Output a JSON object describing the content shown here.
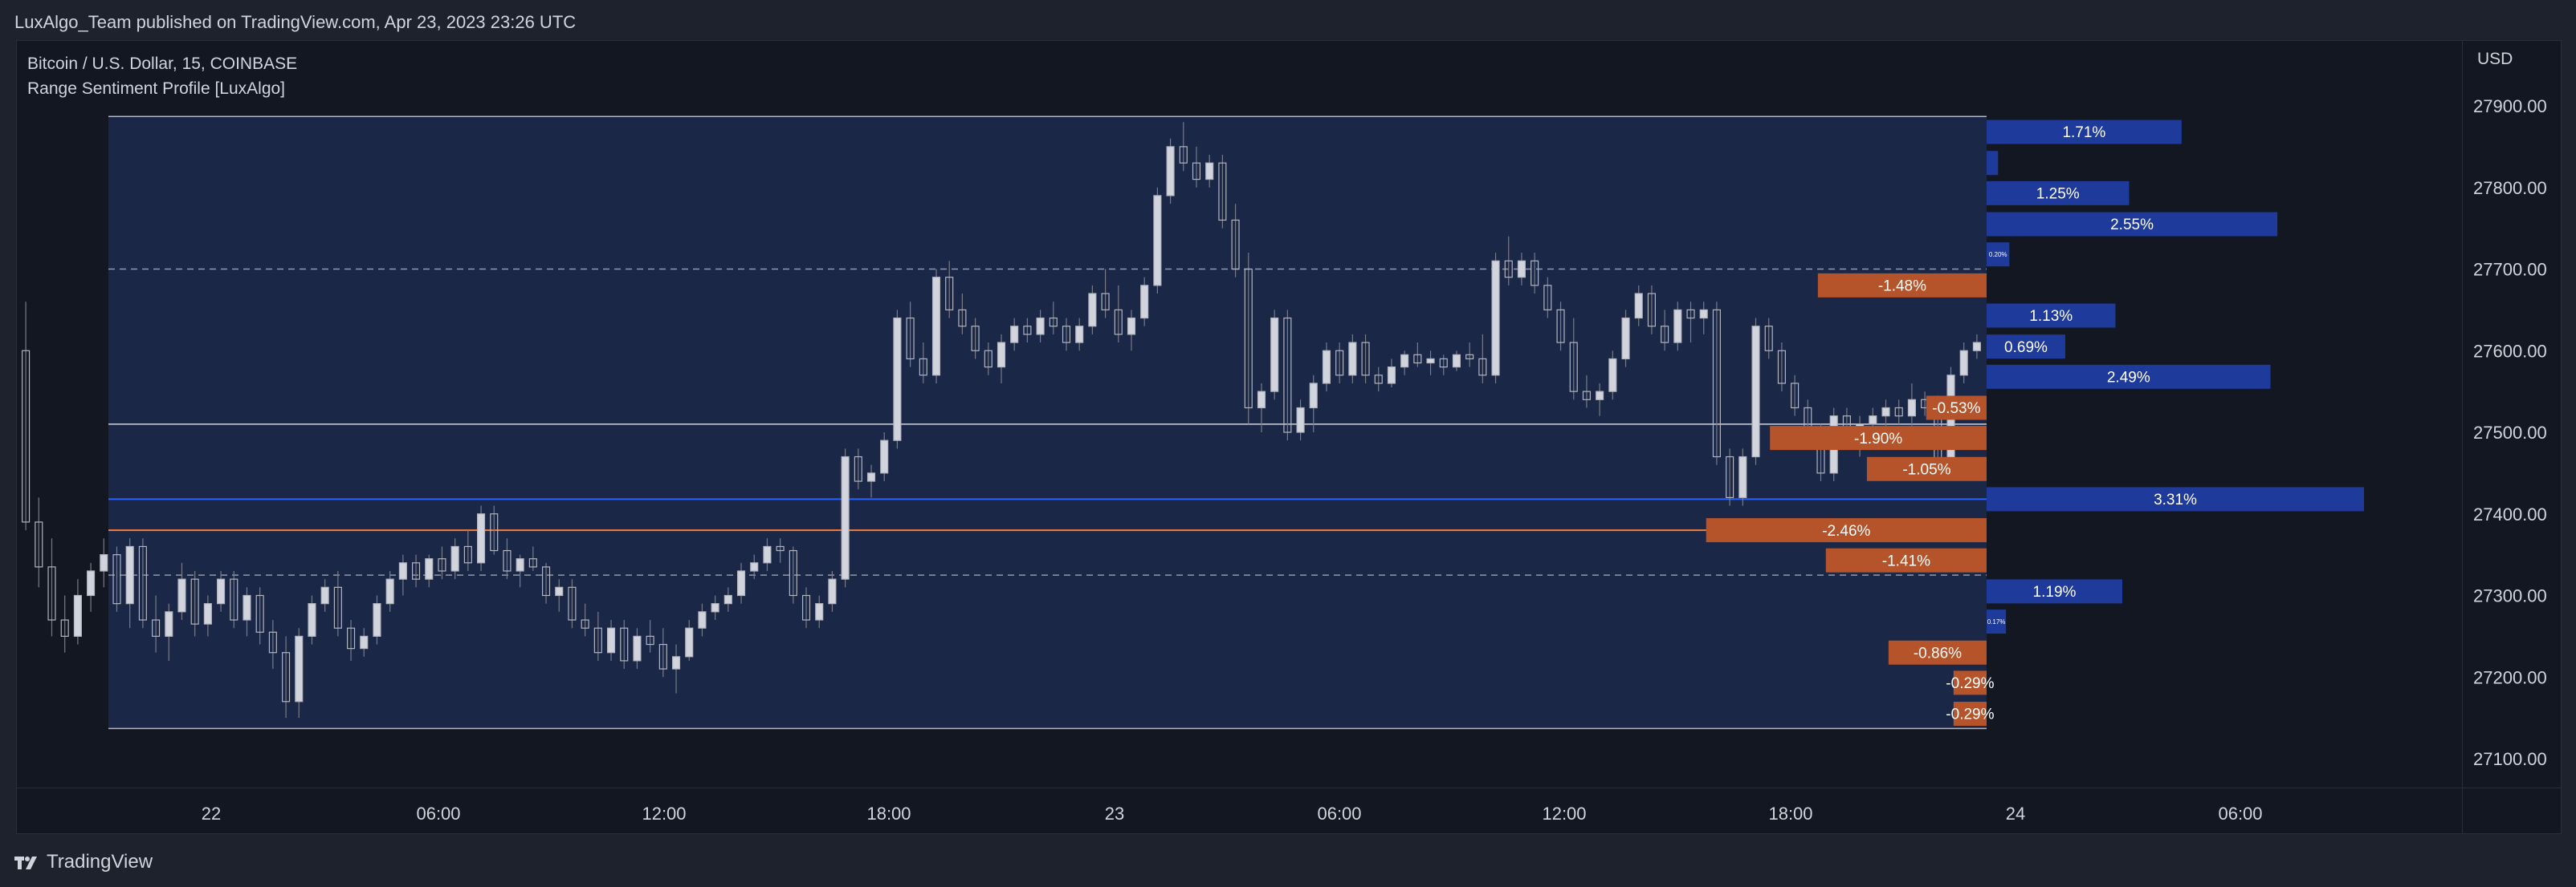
{
  "header": {
    "title": "LuxAlgo_Team published on TradingView.com, Apr 23, 2023 23:26 UTC"
  },
  "legend": {
    "symbol": "Bitcoin / U.S. Dollar, 15, COINBASE",
    "indicator": "Range Sentiment Profile [LuxAlgo]"
  },
  "axis": {
    "currency": "USD"
  },
  "footer": {
    "brand": "TradingView"
  },
  "colors": {
    "background": "#131722",
    "range_fill": "#1a2747",
    "candle": "#b2b5be",
    "bull_bar": "#1e3a9a",
    "bear_bar": "#b5532a",
    "blue_line": "#2962ff",
    "orange_line": "#f57c3a"
  },
  "chart_data": {
    "type": "candlestick-with-profile",
    "y_ticks": [
      27900,
      27800,
      27700,
      27600,
      27500,
      27400,
      27300,
      27200,
      27100
    ],
    "y_tick_labels": [
      "27900.00",
      "27800.00",
      "27700.00",
      "27600.00",
      "27500.00",
      "27400.00",
      "27300.00",
      "27200.00",
      "27100.00"
    ],
    "ylim": [
      27060,
      27945
    ],
    "x_ticks": [
      "22",
      "06:00",
      "12:00",
      "18:00",
      "23",
      "06:00",
      "12:00",
      "18:00",
      "24",
      "06:00"
    ],
    "range": {
      "top": 27887,
      "bottom": 27137
    },
    "levels": {
      "dashed_upper": 27700,
      "dashed_lower": 27325,
      "gray_line": 27510,
      "blue_line": 27418,
      "orange_line": 27380
    },
    "profile_bars": [
      {
        "label": "1.71%",
        "sentiment": 1.71,
        "price": 27868
      },
      {
        "label": "",
        "sentiment": 0.1,
        "price": 27830
      },
      {
        "label": "1.25%",
        "sentiment": 1.25,
        "price": 27793
      },
      {
        "label": "2.55%",
        "sentiment": 2.55,
        "price": 27755
      },
      {
        "label": "0.20%",
        "sentiment": 0.2,
        "price": 27718
      },
      {
        "label": "-1.48%",
        "sentiment": -1.48,
        "price": 27680
      },
      {
        "label": "1.13%",
        "sentiment": 1.13,
        "price": 27643
      },
      {
        "label": "0.69%",
        "sentiment": 0.69,
        "price": 27605
      },
      {
        "label": "2.49%",
        "sentiment": 2.49,
        "price": 27568
      },
      {
        "label": "-0.53%",
        "sentiment": -0.53,
        "price": 27530
      },
      {
        "label": "-1.90%",
        "sentiment": -1.9,
        "price": 27493
      },
      {
        "label": "-1.05%",
        "sentiment": -1.05,
        "price": 27455
      },
      {
        "label": "3.31%",
        "sentiment": 3.31,
        "price": 27418
      },
      {
        "label": "-2.46%",
        "sentiment": -2.46,
        "price": 27380
      },
      {
        "label": "-1.41%",
        "sentiment": -1.41,
        "price": 27343
      },
      {
        "label": "1.19%",
        "sentiment": 1.19,
        "price": 27305
      },
      {
        "label": "0.17%",
        "sentiment": 0.17,
        "price": 27268
      },
      {
        "label": "-0.86%",
        "sentiment": -0.86,
        "price": 27230
      },
      {
        "label": "-0.29%",
        "sentiment": -0.29,
        "price": 27193
      },
      {
        "label": "-0.29%",
        "sentiment": -0.29,
        "price": 27155
      }
    ],
    "candles": [
      [
        27600,
        27660,
        27380,
        27390
      ],
      [
        27390,
        27420,
        27310,
        27335
      ],
      [
        27335,
        27370,
        27250,
        27270
      ],
      [
        27270,
        27300,
        27230,
        27250
      ],
      [
        27250,
        27320,
        27240,
        27300
      ],
      [
        27300,
        27340,
        27280,
        27330
      ],
      [
        27330,
        27370,
        27310,
        27350
      ],
      [
        27350,
        27360,
        27280,
        27290
      ],
      [
        27290,
        27370,
        27260,
        27360
      ],
      [
        27360,
        27370,
        27260,
        27270
      ],
      [
        27270,
        27300,
        27230,
        27250
      ],
      [
        27250,
        27290,
        27220,
        27280
      ],
      [
        27280,
        27340,
        27270,
        27320
      ],
      [
        27320,
        27330,
        27250,
        27265
      ],
      [
        27265,
        27300,
        27250,
        27290
      ],
      [
        27290,
        27330,
        27280,
        27320
      ],
      [
        27320,
        27330,
        27260,
        27270
      ],
      [
        27270,
        27310,
        27250,
        27300
      ],
      [
        27300,
        27310,
        27240,
        27255
      ],
      [
        27255,
        27270,
        27210,
        27230
      ],
      [
        27230,
        27250,
        27150,
        27170
      ],
      [
        27170,
        27260,
        27150,
        27250
      ],
      [
        27250,
        27300,
        27240,
        27290
      ],
      [
        27290,
        27320,
        27280,
        27310
      ],
      [
        27310,
        27330,
        27250,
        27260
      ],
      [
        27260,
        27270,
        27220,
        27235
      ],
      [
        27235,
        27260,
        27225,
        27250
      ],
      [
        27250,
        27300,
        27240,
        27290
      ],
      [
        27290,
        27330,
        27280,
        27320
      ],
      [
        27320,
        27350,
        27300,
        27340
      ],
      [
        27340,
        27350,
        27310,
        27320
      ],
      [
        27320,
        27350,
        27310,
        27345
      ],
      [
        27345,
        27360,
        27320,
        27330
      ],
      [
        27330,
        27370,
        27320,
        27360
      ],
      [
        27360,
        27380,
        27330,
        27340
      ],
      [
        27340,
        27410,
        27330,
        27400
      ],
      [
        27400,
        27410,
        27350,
        27355
      ],
      [
        27355,
        27370,
        27320,
        27330
      ],
      [
        27330,
        27350,
        27310,
        27345
      ],
      [
        27345,
        27360,
        27330,
        27335
      ],
      [
        27335,
        27340,
        27290,
        27300
      ],
      [
        27300,
        27320,
        27280,
        27310
      ],
      [
        27310,
        27320,
        27260,
        27270
      ],
      [
        27270,
        27290,
        27250,
        27260
      ],
      [
        27260,
        27280,
        27220,
        27230
      ],
      [
        27230,
        27270,
        27220,
        27260
      ],
      [
        27260,
        27270,
        27210,
        27220
      ],
      [
        27220,
        27260,
        27210,
        27250
      ],
      [
        27250,
        27270,
        27230,
        27240
      ],
      [
        27240,
        27260,
        27200,
        27210
      ],
      [
        27210,
        27240,
        27180,
        27225
      ],
      [
        27225,
        27270,
        27220,
        27260
      ],
      [
        27260,
        27290,
        27250,
        27280
      ],
      [
        27280,
        27300,
        27270,
        27290
      ],
      [
        27290,
        27310,
        27280,
        27300
      ],
      [
        27300,
        27340,
        27290,
        27330
      ],
      [
        27330,
        27350,
        27320,
        27340
      ],
      [
        27340,
        27370,
        27330,
        27360
      ],
      [
        27360,
        27370,
        27340,
        27355
      ],
      [
        27355,
        27360,
        27290,
        27300
      ],
      [
        27300,
        27310,
        27260,
        27270
      ],
      [
        27270,
        27300,
        27260,
        27290
      ],
      [
        27290,
        27330,
        27280,
        27320
      ],
      [
        27320,
        27480,
        27310,
        27470
      ],
      [
        27470,
        27480,
        27430,
        27440
      ],
      [
        27440,
        27460,
        27420,
        27450
      ],
      [
        27450,
        27500,
        27440,
        27490
      ],
      [
        27490,
        27650,
        27480,
        27640
      ],
      [
        27640,
        27660,
        27580,
        27590
      ],
      [
        27590,
        27610,
        27560,
        27570
      ],
      [
        27570,
        27700,
        27560,
        27690
      ],
      [
        27690,
        27710,
        27640,
        27650
      ],
      [
        27650,
        27670,
        27620,
        27630
      ],
      [
        27630,
        27640,
        27590,
        27600
      ],
      [
        27600,
        27610,
        27570,
        27580
      ],
      [
        27580,
        27620,
        27560,
        27610
      ],
      [
        27610,
        27640,
        27600,
        27630
      ],
      [
        27630,
        27640,
        27610,
        27620
      ],
      [
        27620,
        27650,
        27610,
        27640
      ],
      [
        27640,
        27660,
        27620,
        27630
      ],
      [
        27630,
        27640,
        27600,
        27610
      ],
      [
        27610,
        27640,
        27600,
        27630
      ],
      [
        27630,
        27680,
        27620,
        27670
      ],
      [
        27670,
        27700,
        27640,
        27650
      ],
      [
        27650,
        27680,
        27610,
        27620
      ],
      [
        27620,
        27650,
        27600,
        27640
      ],
      [
        27640,
        27690,
        27630,
        27680
      ],
      [
        27680,
        27800,
        27670,
        27790
      ],
      [
        27790,
        27860,
        27780,
        27850
      ],
      [
        27850,
        27880,
        27820,
        27830
      ],
      [
        27830,
        27850,
        27800,
        27810
      ],
      [
        27810,
        27840,
        27800,
        27830
      ],
      [
        27830,
        27840,
        27750,
        27760
      ],
      [
        27760,
        27780,
        27690,
        27700
      ],
      [
        27700,
        27720,
        27510,
        27530
      ],
      [
        27530,
        27560,
        27500,
        27550
      ],
      [
        27550,
        27650,
        27540,
        27640
      ],
      [
        27640,
        27650,
        27490,
        27500
      ],
      [
        27500,
        27540,
        27490,
        27530
      ],
      [
        27530,
        27570,
        27500,
        27560
      ],
      [
        27560,
        27610,
        27550,
        27600
      ],
      [
        27600,
        27610,
        27560,
        27570
      ],
      [
        27570,
        27620,
        27560,
        27610
      ],
      [
        27610,
        27620,
        27560,
        27570
      ],
      [
        27570,
        27580,
        27550,
        27560
      ],
      [
        27560,
        27590,
        27555,
        27580
      ],
      [
        27580,
        27600,
        27570,
        27595
      ],
      [
        27595,
        27610,
        27580,
        27585
      ],
      [
        27585,
        27600,
        27570,
        27590
      ],
      [
        27590,
        27595,
        27570,
        27580
      ],
      [
        27580,
        27600,
        27575,
        27595
      ],
      [
        27595,
        27610,
        27580,
        27590
      ],
      [
        27590,
        27620,
        27560,
        27570
      ],
      [
        27570,
        27720,
        27560,
        27710
      ],
      [
        27710,
        27740,
        27680,
        27690
      ],
      [
        27690,
        27720,
        27680,
        27710
      ],
      [
        27710,
        27720,
        27670,
        27680
      ],
      [
        27680,
        27690,
        27640,
        27650
      ],
      [
        27650,
        27660,
        27600,
        27610
      ],
      [
        27610,
        27640,
        27540,
        27550
      ],
      [
        27550,
        27570,
        27530,
        27540
      ],
      [
        27540,
        27560,
        27520,
        27550
      ],
      [
        27550,
        27600,
        27540,
        27590
      ],
      [
        27590,
        27650,
        27580,
        27640
      ],
      [
        27640,
        27680,
        27630,
        27670
      ],
      [
        27670,
        27680,
        27620,
        27630
      ],
      [
        27630,
        27650,
        27600,
        27610
      ],
      [
        27610,
        27660,
        27600,
        27650
      ],
      [
        27650,
        27660,
        27610,
        27640
      ],
      [
        27640,
        27660,
        27620,
        27650
      ],
      [
        27650,
        27660,
        27460,
        27470
      ],
      [
        27470,
        27480,
        27410,
        27420
      ],
      [
        27420,
        27480,
        27410,
        27470
      ],
      [
        27470,
        27640,
        27460,
        27630
      ],
      [
        27630,
        27640,
        27590,
        27600
      ],
      [
        27600,
        27610,
        27550,
        27560
      ],
      [
        27560,
        27570,
        27520,
        27530
      ],
      [
        27530,
        27540,
        27490,
        27500
      ],
      [
        27500,
        27510,
        27440,
        27450
      ],
      [
        27450,
        27530,
        27440,
        27520
      ],
      [
        27520,
        27530,
        27480,
        27490
      ],
      [
        27490,
        27520,
        27470,
        27510
      ],
      [
        27510,
        27530,
        27490,
        27520
      ],
      [
        27520,
        27540,
        27500,
        27530
      ],
      [
        27530,
        27540,
        27510,
        27520
      ],
      [
        27520,
        27560,
        27500,
        27540
      ],
      [
        27540,
        27550,
        27520,
        27530
      ],
      [
        27530,
        27545,
        27450,
        27460
      ],
      [
        27460,
        27580,
        27450,
        27570
      ],
      [
        27570,
        27610,
        27560,
        27600
      ],
      [
        27600,
        27620,
        27590,
        27610
      ]
    ]
  }
}
